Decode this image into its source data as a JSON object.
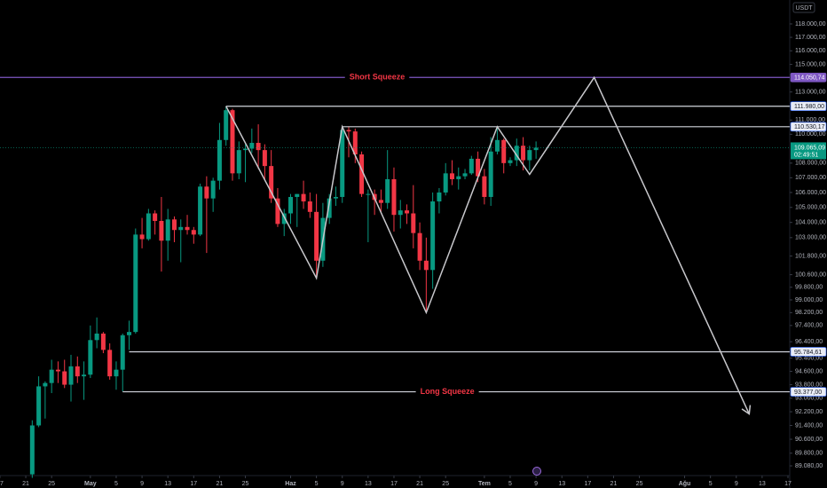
{
  "chart_data": {
    "type": "candlestick",
    "currency": "USDT",
    "log": true,
    "up_color": "#089981",
    "down_color": "#f23645",
    "x": [
      "04-22",
      "04-23",
      "04-24",
      "04-25",
      "04-26",
      "04-27",
      "04-28",
      "04-29",
      "04-30",
      "05-01",
      "05-02",
      "05-03",
      "05-04",
      "05-05",
      "05-06",
      "05-07",
      "05-08",
      "05-09",
      "05-10",
      "05-11",
      "05-12",
      "05-13",
      "05-14",
      "05-15",
      "05-16",
      "05-17",
      "05-18",
      "05-19",
      "05-20",
      "05-21",
      "05-22",
      "05-23",
      "05-24",
      "05-25",
      "05-26",
      "05-27",
      "05-28",
      "05-29",
      "05-30",
      "05-31",
      "06-01",
      "06-02",
      "06-03",
      "06-04",
      "06-05",
      "06-06",
      "06-07",
      "06-08",
      "06-09",
      "06-10",
      "06-11",
      "06-12",
      "06-13",
      "06-14",
      "06-15",
      "06-16",
      "06-17",
      "06-18",
      "06-19",
      "06-20",
      "06-21",
      "06-22",
      "06-23",
      "06-24",
      "06-25",
      "06-26",
      "06-27",
      "06-28",
      "06-29",
      "06-30",
      "07-01",
      "07-02",
      "07-03",
      "07-04",
      "07-05",
      "07-06",
      "07-07",
      "07-08",
      "07-09"
    ],
    "open": [
      88600,
      91400,
      93700,
      93900,
      94700,
      94600,
      93800,
      94900,
      94300,
      94400,
      96500,
      96900,
      95900,
      94300,
      94700,
      96800,
      97000,
      103200,
      102900,
      104600,
      104100,
      102800,
      104200,
      103500,
      103700,
      103500,
      103200,
      106400,
      105600,
      106800,
      109600,
      111700,
      107300,
      108900,
      109000,
      109400,
      108900,
      107800,
      105600,
      103900,
      104600,
      105700,
      105900,
      105400,
      104700,
      101500,
      104300,
      105600,
      105700,
      110300,
      110200,
      108600,
      105900,
      105900,
      105500,
      105300,
      106900,
      104500,
      104800,
      104600,
      103300,
      101500,
      100900,
      105400,
      106000,
      107300,
      106900,
      107100,
      107300,
      108300,
      107100,
      105700,
      108800,
      109600,
      108000,
      108200,
      109200,
      108200,
      108900
    ],
    "high": [
      91700,
      94300,
      94000,
      95300,
      95200,
      95300,
      95600,
      95500,
      95200,
      97400,
      97900,
      97000,
      96300,
      95200,
      96900,
      97700,
      103600,
      104300,
      104900,
      104800,
      105700,
      104900,
      104400,
      104200,
      104500,
      103700,
      106600,
      107100,
      107000,
      110800,
      111980,
      111800,
      109500,
      109300,
      110400,
      110700,
      109300,
      108900,
      106300,
      104900,
      105900,
      105900,
      106800,
      106000,
      105900,
      105300,
      105900,
      106400,
      110400,
      110530,
      110400,
      108800,
      106200,
      106200,
      106200,
      108900,
      107700,
      105500,
      105200,
      106500,
      104000,
      103000,
      106000,
      106300,
      108000,
      108200,
      107700,
      107600,
      108500,
      108800,
      107600,
      109800,
      110530,
      109700,
      108400,
      109700,
      109800,
      109200,
      109500
    ],
    "low": [
      88400,
      91300,
      91800,
      93300,
      93900,
      93600,
      92800,
      93900,
      92900,
      94200,
      96000,
      95700,
      94100,
      93500,
      93400,
      95900,
      96900,
      102300,
      102800,
      103200,
      100800,
      101500,
      102700,
      101400,
      103200,
      102600,
      103100,
      102000,
      104700,
      106200,
      109200,
      106800,
      106900,
      106700,
      108700,
      107600,
      106800,
      105300,
      103700,
      103100,
      103900,
      103700,
      104900,
      104300,
      100400,
      101100,
      103900,
      105100,
      105300,
      108400,
      108000,
      105700,
      102700,
      104500,
      104600,
      104900,
      103400,
      103600,
      103900,
      102300,
      100900,
      98200,
      99700,
      104600,
      105800,
      106500,
      106200,
      106900,
      107200,
      106700,
      105200,
      105100,
      108600,
      107300,
      107800,
      107800,
      107500,
      107500,
      108300
    ],
    "close": [
      91400,
      93700,
      93900,
      94700,
      94600,
      93800,
      94900,
      94300,
      94400,
      96500,
      96900,
      95900,
      94300,
      94700,
      96800,
      97000,
      103200,
      102900,
      104600,
      104100,
      102800,
      104200,
      103500,
      103700,
      103500,
      103200,
      106400,
      105600,
      106800,
      109600,
      111700,
      107300,
      108900,
      109000,
      109400,
      108900,
      107800,
      105600,
      103900,
      104600,
      105700,
      105900,
      105400,
      104700,
      101500,
      104300,
      105600,
      105700,
      110300,
      110200,
      108600,
      105900,
      105900,
      105500,
      105300,
      106900,
      104500,
      104800,
      104600,
      103300,
      101500,
      100900,
      105400,
      106000,
      107300,
      106900,
      107100,
      107300,
      108300,
      107100,
      105700,
      108800,
      109600,
      108000,
      108200,
      109200,
      108200,
      108900,
      109065
    ],
    "xlim": [
      "04-16",
      "08-17"
    ],
    "ylim": [
      88580,
      119810
    ],
    "xticks": [
      {
        "value": "04-17",
        "label": "17"
      },
      {
        "value": "04-21",
        "label": "21"
      },
      {
        "value": "04-25",
        "label": "25"
      },
      {
        "value": "05-01",
        "label": "May"
      },
      {
        "value": "05-05",
        "label": "5"
      },
      {
        "value": "05-09",
        "label": "9"
      },
      {
        "value": "05-13",
        "label": "13"
      },
      {
        "value": "05-17",
        "label": "17"
      },
      {
        "value": "05-21",
        "label": "21"
      },
      {
        "value": "05-25",
        "label": "25"
      },
      {
        "value": "06-01",
        "label": "Haz"
      },
      {
        "value": "06-05",
        "label": "5"
      },
      {
        "value": "06-09",
        "label": "9"
      },
      {
        "value": "06-13",
        "label": "13"
      },
      {
        "value": "06-17",
        "label": "17"
      },
      {
        "value": "06-21",
        "label": "21"
      },
      {
        "value": "06-25",
        "label": "25"
      },
      {
        "value": "07-01",
        "label": "Tem"
      },
      {
        "value": "07-05",
        "label": "5"
      },
      {
        "value": "07-09",
        "label": "9"
      },
      {
        "value": "07-13",
        "label": "13"
      },
      {
        "value": "07-17",
        "label": "17"
      },
      {
        "value": "07-21",
        "label": "21"
      },
      {
        "value": "07-25",
        "label": "25"
      },
      {
        "value": "08-01",
        "label": "Ağu"
      },
      {
        "value": "08-05",
        "label": "5"
      },
      {
        "value": "08-09",
        "label": "9"
      },
      {
        "value": "08-13",
        "label": "13"
      },
      {
        "value": "08-17",
        "label": "17"
      }
    ],
    "yticks": [
      {
        "value": 118000,
        "label": "118.000,00"
      },
      {
        "value": 117000,
        "label": "117.000,00"
      },
      {
        "value": 116000,
        "label": "116.000,00"
      },
      {
        "value": 115000,
        "label": "115.000,00"
      },
      {
        "value": 113000,
        "label": "113.000,00"
      },
      {
        "value": 111000,
        "label": "111.000,00"
      },
      {
        "value": 110000,
        "label": "110.000,00"
      },
      {
        "value": 108000,
        "label": "108.000,00"
      },
      {
        "value": 107000,
        "label": "107.000,00"
      },
      {
        "value": 106000,
        "label": "106.000,00"
      },
      {
        "value": 105000,
        "label": "105.000,00"
      },
      {
        "value": 104000,
        "label": "104.000,00"
      },
      {
        "value": 103000,
        "label": "103.000,00"
      },
      {
        "value": 101800,
        "label": "101.800,00"
      },
      {
        "value": 100600,
        "label": "100.600,00"
      },
      {
        "value": 99800,
        "label": "99.800,00"
      },
      {
        "value": 99000,
        "label": "99.000,00"
      },
      {
        "value": 98200,
        "label": "98.200,00"
      },
      {
        "value": 97400,
        "label": "97.400,00"
      },
      {
        "value": 96400,
        "label": "96.400,00"
      },
      {
        "value": 95400,
        "label": "95.400,00"
      },
      {
        "value": 94600,
        "label": "94.600,00"
      },
      {
        "value": 93800,
        "label": "93.800,00"
      },
      {
        "value": 93000,
        "label": "93.000,00"
      },
      {
        "value": 92200,
        "label": "92.200,00"
      },
      {
        "value": 91400,
        "label": "91.400,00"
      },
      {
        "value": 90600,
        "label": "90.600,00"
      },
      {
        "value": 89800,
        "label": "89.800,00"
      },
      {
        "value": 89080,
        "label": "89.080,00"
      }
    ],
    "levels": [
      {
        "value": 114050.74,
        "label": "114.050,74",
        "name": "Short Squeeze",
        "color": "#7e57c2"
      },
      {
        "value": 111980,
        "label": "111.980,00",
        "from": "05-22",
        "color": "#d1d4dc"
      },
      {
        "value": 110530.17,
        "label": "110.530,17",
        "from": "06-09",
        "color": "#d1d4dc"
      },
      {
        "value": 95784.61,
        "label": "95.784,61",
        "from": "05-07",
        "color": "#d1d4dc"
      },
      {
        "value": 93377,
        "label": "93.377,00",
        "name": "Long Squeeze",
        "from": "05-06",
        "color": "#d1d4dc"
      }
    ],
    "current": {
      "value": 109065.09,
      "label": "109.065,09",
      "countdown": "02:49:51"
    },
    "projection": {
      "x": [
        "05-22",
        "06-05",
        "06-09",
        "06-22",
        "07-03",
        "07-08",
        "07-18",
        "08-11"
      ],
      "y": [
        111980,
        100380,
        110530,
        98200,
        110530,
        107230,
        114050,
        92070
      ],
      "color": "#c8c8cc"
    }
  }
}
